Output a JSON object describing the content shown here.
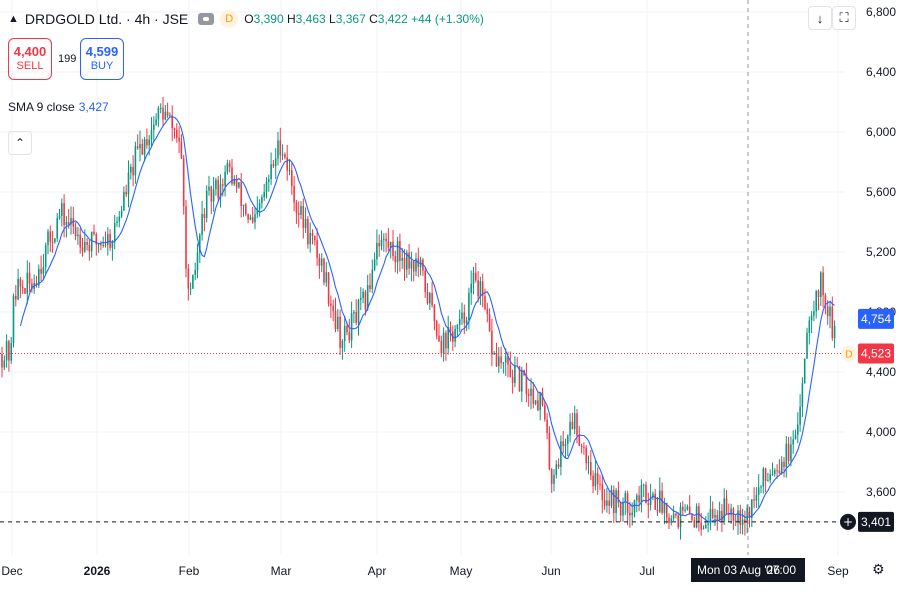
{
  "header": {
    "symbol": "DRDGOLD Ltd. · 4h · JSE",
    "badge": "D",
    "o_label": "O",
    "o": "3,390",
    "h_label": "H",
    "h": "3,463",
    "l_label": "L",
    "l": "3,367",
    "c_label": "C",
    "c": "3,422",
    "change": "+44 (+1.30%)"
  },
  "trade": {
    "sell_price": "4,400",
    "sell_label": "SELL",
    "spread": "199",
    "buy_price": "4,599",
    "buy_label": "BUY"
  },
  "indicator": {
    "label": "SMA 9 close",
    "value": "3,427"
  },
  "colors": {
    "up": "#089981",
    "down": "#f23645",
    "sma": "#2962ff",
    "grid": "#f0f3fa",
    "crosshair": "#9598a1"
  },
  "icons": {
    "symbol": "triangle-up-icon",
    "visibility": "eye-icon",
    "collapse": "chevron-up-icon",
    "download": "arrow-down-icon",
    "fullscreen": "fullscreen-icon",
    "settings": "gear-icon",
    "add": "plus-circle-icon"
  },
  "chart_data": {
    "type": "candlestick",
    "y_ticks": [
      "6,800",
      "6,400",
      "6,000",
      "5,600",
      "5,200",
      "4,800",
      "4,400",
      "4,000",
      "3,600"
    ],
    "y_tick_values": [
      6800,
      6400,
      6000,
      5600,
      5200,
      4800,
      4400,
      4000,
      3600
    ],
    "x_ticks": [
      "Dec",
      "2026",
      "Feb",
      "Mar",
      "Apr",
      "May",
      "Jun",
      "Jul",
      "Sep"
    ],
    "x_tick_bold": [
      false,
      true,
      false,
      false,
      false,
      false,
      false,
      false,
      false
    ],
    "ylim": [
      3340,
      6880
    ],
    "price_series_approx": [
      [
        "Dec",
        4950
      ],
      [
        "2025-12-08",
        4980
      ],
      [
        "2025-12-18",
        5450
      ],
      [
        "2025-12-28",
        5250
      ],
      [
        "2026-01-06",
        5300
      ],
      [
        "2026-01-14",
        5850
      ],
      [
        "2026-01-22",
        6150
      ],
      [
        "2026-01-28",
        5950
      ],
      [
        "Feb",
        4800
      ],
      [
        "2026-02-06",
        5500
      ],
      [
        "2026-02-14",
        5750
      ],
      [
        "2026-02-22",
        5350
      ],
      [
        "Mar",
        5950
      ],
      [
        "2026-03-06",
        5500
      ],
      [
        "2026-03-14",
        5100
      ],
      [
        "2026-03-20",
        4600
      ],
      [
        "2026-03-28",
        4900
      ],
      [
        "Apr",
        5300
      ],
      [
        "2026-04-08",
        5200
      ],
      [
        "2026-04-16",
        5100
      ],
      [
        "2026-04-24",
        4600
      ],
      [
        "May",
        4700
      ],
      [
        "2026-05-06",
        5050
      ],
      [
        "2026-05-12",
        4500
      ],
      [
        "2026-05-20",
        4350
      ],
      [
        "2026-05-28",
        4200
      ],
      [
        "Jun",
        3700
      ],
      [
        "2026-06-08",
        4100
      ],
      [
        "2026-06-16",
        3600
      ],
      [
        "2026-06-24",
        3500
      ],
      [
        "Jul",
        3600
      ],
      [
        "2026-07-10",
        3450
      ],
      [
        "2026-07-20",
        3430
      ],
      [
        "2026-07-28",
        3500
      ],
      [
        "2026-08-03",
        3450
      ],
      [
        "2026-08-10",
        3750
      ],
      [
        "2026-08-18",
        3900
      ],
      [
        "2026-08-22",
        4800
      ],
      [
        "2026-08-26",
        5000
      ],
      [
        "Sep",
        4520
      ]
    ],
    "labels": {
      "sma_last": "4,754",
      "last_price": "4,523",
      "last_badge": "D",
      "cursor_price": "3,401",
      "cursor_time": "Mon 03 Aug '26",
      "cursor_clock": "07:00"
    },
    "lines": {
      "last_price": 4523,
      "cursor_price": 3401,
      "sma_last": 4754
    },
    "grid": true
  }
}
